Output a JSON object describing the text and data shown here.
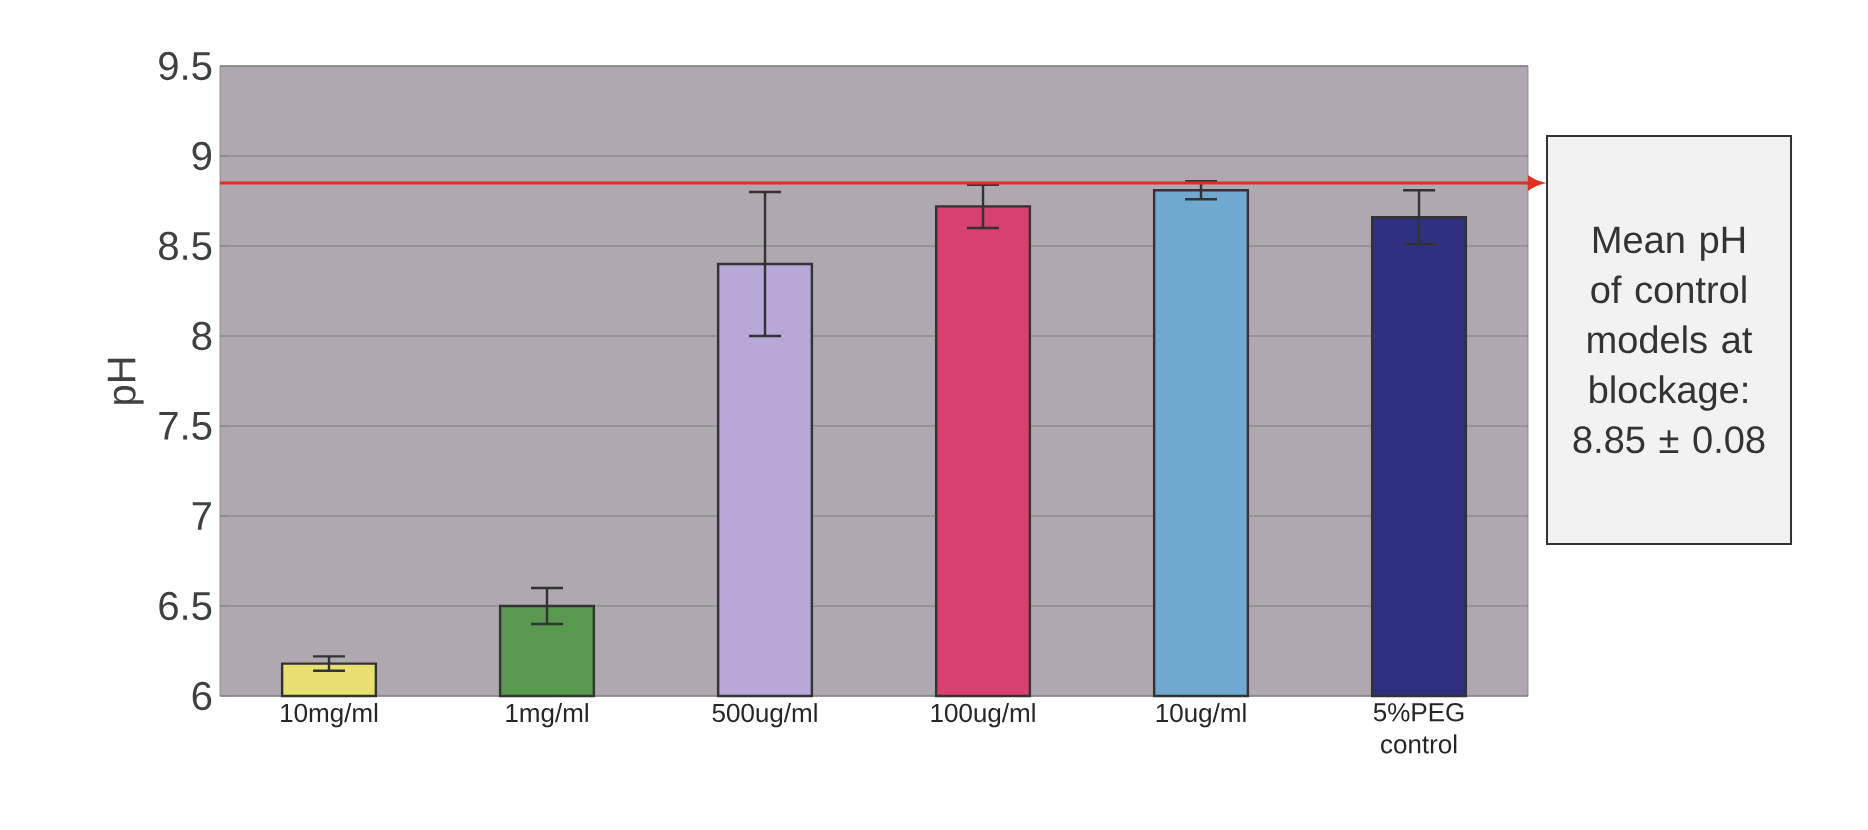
{
  "chart_data": {
    "type": "bar",
    "ylabel": "pH",
    "categories": [
      "10mg/ml",
      "1mg/ml",
      "500ug/ml",
      "100ug/ml",
      "10ug/ml",
      "5%PEG control"
    ],
    "values": [
      6.18,
      6.5,
      8.4,
      8.72,
      8.81,
      8.66
    ],
    "errors": [
      0.04,
      0.1,
      0.4,
      0.12,
      0.05,
      0.15
    ],
    "colors": [
      "#e8e070",
      "#5a9a50",
      "#b8a8d8",
      "#d84070",
      "#70a8d0",
      "#303080"
    ],
    "ylim": [
      6,
      9.5
    ],
    "yticks": [
      6,
      6.5,
      7,
      7.5,
      8,
      8.5,
      9,
      9.5
    ],
    "grid": "y",
    "ref_lines": [
      {
        "axis": "y",
        "value": 8.85,
        "label": "Mean pH of control models at blockage: 8.85 ± 0.08",
        "color": "#e03020"
      }
    ]
  }
}
